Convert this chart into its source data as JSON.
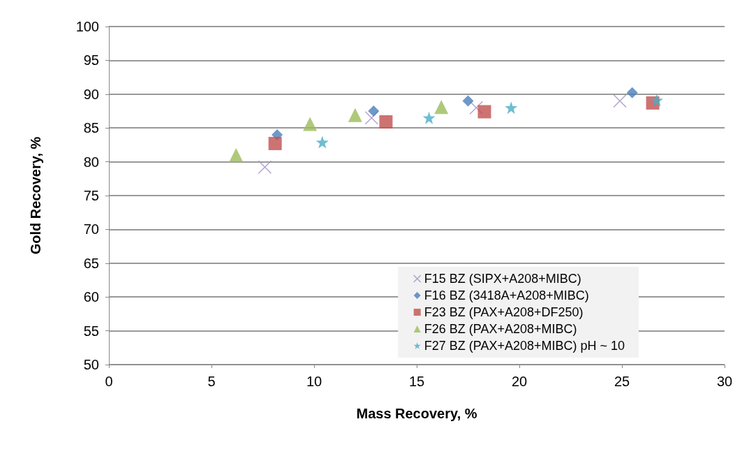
{
  "chart_data": {
    "type": "scatter",
    "xlabel": "Mass Recovery, %",
    "ylabel": "Gold Recovery, %",
    "xlim": [
      0,
      30
    ],
    "xticks": [
      0,
      5,
      10,
      15,
      20,
      25,
      30
    ],
    "ylim": [
      50,
      100
    ],
    "yticks": [
      50,
      55,
      60,
      65,
      70,
      75,
      80,
      85,
      90,
      95,
      100
    ],
    "grid": "y",
    "legend": "bottom right",
    "series": [
      {
        "name": "F15 BZ (SIPX+A208+MIBC)",
        "color": "#a08cc4",
        "marker": "cross",
        "x": [
          7.6,
          12.8,
          17.9,
          24.9
        ],
        "values": [
          79.2,
          86.5,
          88.0,
          89.0
        ]
      },
      {
        "name": "F16 BZ (3418A+A208+MIBC)",
        "color": "#4a7ebb",
        "marker": "diamond",
        "x": [
          8.2,
          12.9,
          17.5,
          25.5
        ],
        "values": [
          84.0,
          87.5,
          89.0,
          90.2
        ]
      },
      {
        "name": "F23 BZ (PAX+A208+DF250)",
        "color": "#c0504d",
        "marker": "square",
        "x": [
          8.1,
          13.5,
          18.3,
          26.5
        ],
        "values": [
          82.7,
          85.9,
          87.4,
          88.7
        ]
      },
      {
        "name": "F26 BZ (PAX+A208+MIBC)",
        "color": "#9bbb59",
        "marker": "triangle",
        "x": [
          6.2,
          9.8,
          12.0,
          16.2
        ],
        "values": [
          81.0,
          85.6,
          86.9,
          88.1
        ]
      },
      {
        "name": "F27 BZ (PAX+A208+MIBC) pH ~ 10",
        "color": "#4bacc6",
        "marker": "star",
        "x": [
          10.4,
          15.6,
          19.6,
          26.7
        ],
        "values": [
          82.9,
          86.5,
          88.0,
          89.1
        ]
      }
    ]
  }
}
